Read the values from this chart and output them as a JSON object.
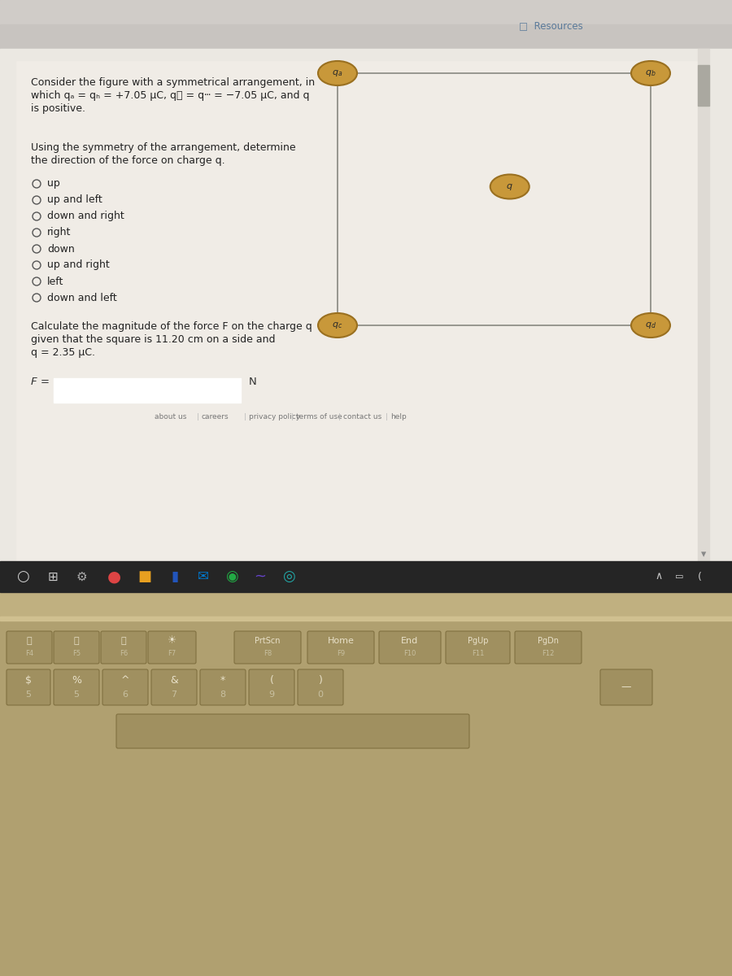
{
  "bg_outer": "#c8c4bc",
  "browser_bg": "#e8e4e0",
  "content_bg": "#ebe8e2",
  "white_area": "#f2efea",
  "resources_text": "Resources",
  "title_line1": "Consider the figure with a symmetrical arrangement, in",
  "title_line2": "which qₐ = qₕ = +7.05 μC, qⲜ = qⵈ = −7.05 μC, and q",
  "title_line3": "is positive.",
  "q1_line1": "Using the symmetry of the arrangement, determine",
  "q1_line2": "the direction of the force on charge q.",
  "options": [
    "up",
    "up and left",
    "down and right",
    "right",
    "down",
    "up and right",
    "left",
    "down and left"
  ],
  "q2_line1": "Calculate the magnitude of the force F on the charge q",
  "q2_line2": "given that the square is 11.20 cm on a side and",
  "q2_line3": "q = 2.35 μC.",
  "f_label": "F =",
  "f_unit": "N",
  "footer_links": [
    "about us",
    "careers",
    "privacy policy",
    "terms of use",
    "contact us",
    "help"
  ],
  "node_fill": "#c8983a",
  "node_edge": "#9a7020",
  "sq_line_color": "#888880",
  "taskbar_color": "#252525",
  "keyboard_bg": "#b0a070",
  "key_face": "#a09060",
  "key_edge": "#807040",
  "bezel_color": "#c0b080",
  "scrollbar_track": "#dedad4",
  "scrollbar_thumb": "#aaa8a0"
}
